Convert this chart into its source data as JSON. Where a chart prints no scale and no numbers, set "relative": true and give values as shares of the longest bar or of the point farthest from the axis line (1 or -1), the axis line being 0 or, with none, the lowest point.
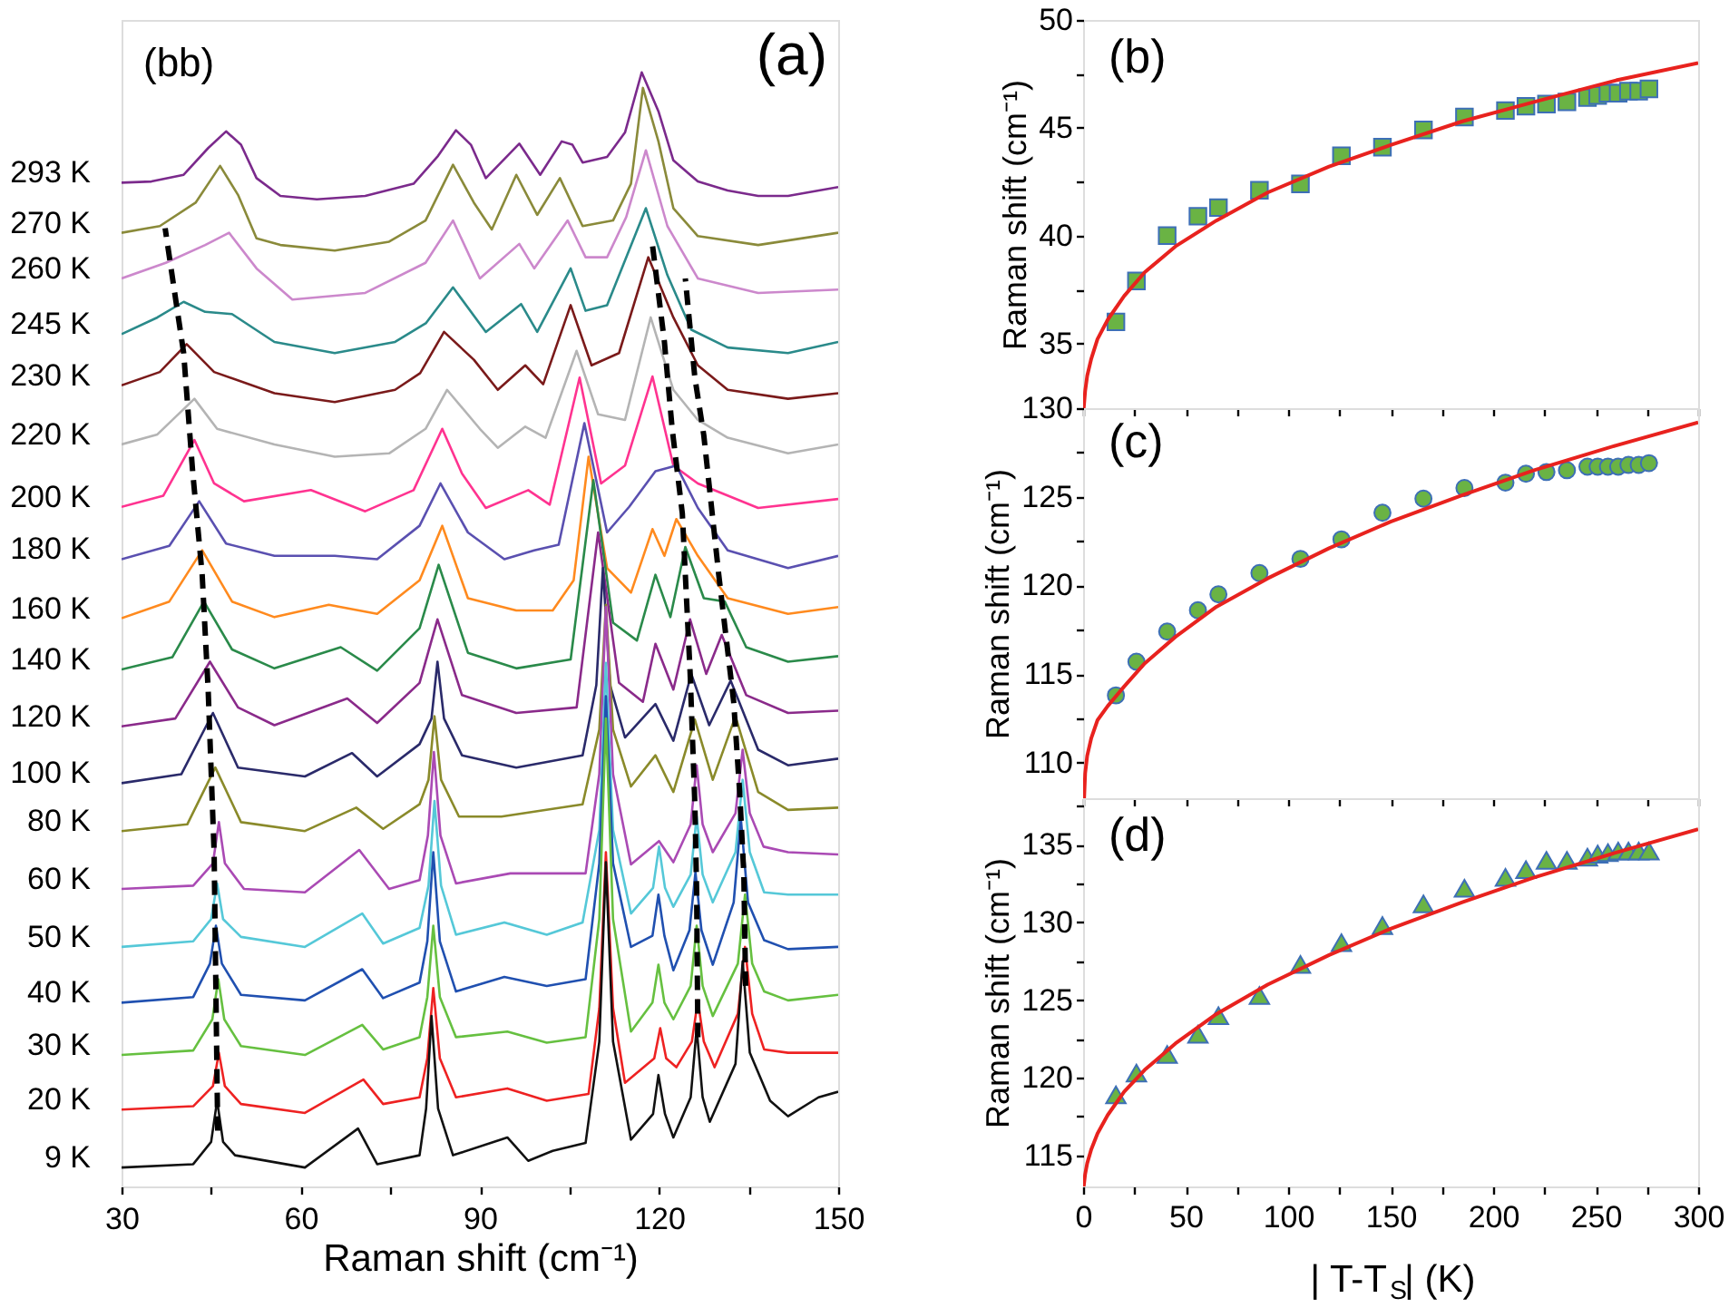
{
  "chart_data": [
    {
      "type": "line",
      "relative": true,
      "xlabel": "Raman shift (cm⁻¹)",
      "annotations": [
        "(bb)",
        "(a)"
      ],
      "xlim": [
        30,
        150
      ],
      "xticks": [
        30,
        {
          "value": 45,
          "label": null
        },
        60,
        {
          "value": 75,
          "label": null
        },
        90,
        {
          "value": 105,
          "label": null
        },
        120,
        {
          "value": 135,
          "label": null
        },
        150
      ],
      "series": [
        {
          "name": "293 K",
          "color": "#7b2a8c",
          "x": [
            30,
            35,
            40.4,
            44.5,
            47.5,
            50,
            52.6,
            56.6,
            62.7,
            70.8,
            78.9,
            83,
            86,
            88.5,
            91,
            96.6,
            100.1,
            103.7,
            105.5,
            107.2,
            111.3,
            114.3,
            117.1,
            119.9,
            122.4,
            126.5,
            131.5,
            136.6,
            141.6,
            150
          ],
          "values": [
            0.901,
            0.902,
            0.908,
            0.932,
            0.947,
            0.935,
            0.905,
            0.889,
            0.886,
            0.889,
            0.9,
            0.925,
            0.948,
            0.935,
            0.905,
            0.936,
            0.908,
            0.938,
            0.935,
            0.919,
            0.924,
            0.946,
            1.0,
            0.965,
            0.921,
            0.902,
            0.894,
            0.889,
            0.889,
            0.897
          ]
        },
        {
          "name": "270 K",
          "color": "#8a8a3a",
          "x": [
            30,
            36.4,
            42.4,
            46.5,
            49.5,
            52.6,
            56.6,
            65.7,
            74.8,
            80.9,
            85.5,
            89,
            92,
            96.1,
            99.6,
            103.4,
            107.2,
            112.3,
            115.3,
            117.3,
            119.9,
            122.4,
            126.5,
            136.6,
            150
          ],
          "values": [
            0.856,
            0.862,
            0.883,
            0.916,
            0.89,
            0.851,
            0.845,
            0.84,
            0.848,
            0.867,
            0.917,
            0.883,
            0.859,
            0.908,
            0.872,
            0.905,
            0.862,
            0.867,
            0.9,
            0.986,
            0.938,
            0.878,
            0.853,
            0.845,
            0.856
          ]
        },
        {
          "name": "260 K",
          "color": "#cc88cc",
          "x": [
            30,
            37.4,
            44,
            48,
            52.6,
            58.6,
            70.8,
            80.9,
            85.5,
            90,
            96.6,
            99.1,
            104.7,
            107.7,
            111.3,
            114.5,
            117.8,
            121.4,
            126.5,
            136.6,
            150
          ],
          "values": [
            0.815,
            0.829,
            0.845,
            0.856,
            0.824,
            0.796,
            0.802,
            0.829,
            0.867,
            0.815,
            0.846,
            0.824,
            0.867,
            0.834,
            0.834,
            0.87,
            0.93,
            0.862,
            0.815,
            0.802,
            0.805
          ]
        },
        {
          "name": "245 K",
          "color": "#2a8a8a",
          "x": [
            30,
            36,
            40.4,
            44,
            48.5,
            55.6,
            65.7,
            75.8,
            81,
            85.5,
            91,
            96.9,
            99.6,
            105.2,
            107.7,
            111.3,
            117.8,
            121.4,
            125.4,
            131.5,
            141.6,
            150
          ],
          "values": [
            0.765,
            0.78,
            0.794,
            0.785,
            0.783,
            0.758,
            0.748,
            0.758,
            0.775,
            0.807,
            0.767,
            0.792,
            0.767,
            0.824,
            0.786,
            0.791,
            0.878,
            0.818,
            0.769,
            0.753,
            0.748,
            0.758
          ]
        },
        {
          "name": "230 K",
          "color": "#7a1a1a",
          "x": [
            30,
            36.4,
            40.9,
            45.5,
            55.6,
            65.7,
            75.8,
            80,
            84,
            89,
            93,
            97.6,
            100.6,
            105.2,
            108.7,
            113.3,
            118.2,
            122.4,
            126.5,
            131.5,
            141.6,
            150
          ],
          "values": [
            0.719,
            0.731,
            0.756,
            0.731,
            0.712,
            0.704,
            0.715,
            0.73,
            0.767,
            0.742,
            0.715,
            0.737,
            0.72,
            0.791,
            0.737,
            0.748,
            0.834,
            0.78,
            0.737,
            0.715,
            0.707,
            0.712
          ]
        },
        {
          "name": "220 K",
          "color": "#b4b4b4",
          "x": [
            30,
            36,
            42.2,
            46,
            55.6,
            65.7,
            74.8,
            80.9,
            84.5,
            90,
            93,
            97.6,
            101,
            106.2,
            109.8,
            114.3,
            118.6,
            122.4,
            126.5,
            131.5,
            141.6,
            150
          ],
          "values": [
            0.666,
            0.675,
            0.707,
            0.68,
            0.666,
            0.655,
            0.658,
            0.68,
            0.715,
            0.68,
            0.663,
            0.682,
            0.672,
            0.75,
            0.693,
            0.688,
            0.78,
            0.715,
            0.688,
            0.672,
            0.658,
            0.666
          ]
        },
        {
          "name": "200 K",
          "color": "#ff3390",
          "x": [
            30,
            37,
            42.2,
            45.5,
            50.5,
            61.7,
            70.8,
            78.9,
            83.7,
            87,
            91,
            98.1,
            101.7,
            106.7,
            110.3,
            114.3,
            118.9,
            122.4,
            126.5,
            136.6,
            150
          ],
          "values": [
            0.61,
            0.62,
            0.67,
            0.631,
            0.615,
            0.625,
            0.606,
            0.625,
            0.68,
            0.64,
            0.609,
            0.625,
            0.612,
            0.726,
            0.631,
            0.647,
            0.727,
            0.647,
            0.631,
            0.609,
            0.617
          ]
        },
        {
          "name": "180 K",
          "color": "#5a50b0",
          "x": [
            30,
            38,
            43,
            47.5,
            55.6,
            65.7,
            72.8,
            79.9,
            83.4,
            88,
            94.1,
            99.1,
            103.2,
            107.5,
            111.3,
            115,
            119.4,
            122.9,
            126.5,
            131.5,
            141.6,
            150
          ],
          "values": [
            0.563,
            0.575,
            0.615,
            0.577,
            0.566,
            0.566,
            0.563,
            0.593,
            0.631,
            0.587,
            0.563,
            0.571,
            0.576,
            0.685,
            0.587,
            0.61,
            0.642,
            0.647,
            0.609,
            0.571,
            0.555,
            0.566
          ]
        },
        {
          "name": "160 K",
          "color": "#ff8a1e",
          "x": [
            30,
            38,
            43.5,
            48.5,
            55.6,
            64.7,
            72.8,
            79.9,
            83.7,
            88,
            96.1,
            102.2,
            105.7,
            108.2,
            111.3,
            115.3,
            118.9,
            120.9,
            122.9,
            126.5,
            131.5,
            141.6,
            150
          ],
          "values": [
            0.51,
            0.525,
            0.571,
            0.525,
            0.511,
            0.522,
            0.514,
            0.544,
            0.593,
            0.528,
            0.517,
            0.517,
            0.544,
            0.655,
            0.555,
            0.533,
            0.59,
            0.566,
            0.599,
            0.566,
            0.528,
            0.514,
            0.52
          ]
        },
        {
          "name": "140 K",
          "color": "#2a8a4a",
          "x": [
            30,
            38.5,
            43.8,
            48.5,
            55.6,
            66.7,
            72.8,
            79.9,
            83.1,
            88,
            96.1,
            105.2,
            109,
            112.3,
            116.3,
            119.4,
            121.9,
            124.4,
            127.5,
            131,
            134.6,
            141.6,
            150
          ],
          "values": [
            0.464,
            0.475,
            0.525,
            0.482,
            0.465,
            0.484,
            0.463,
            0.501,
            0.558,
            0.479,
            0.465,
            0.473,
            0.634,
            0.506,
            0.49,
            0.549,
            0.511,
            0.574,
            0.528,
            0.525,
            0.484,
            0.471,
            0.476
          ]
        },
        {
          "name": "120 K",
          "color": "#8a2a8a",
          "x": [
            30,
            39,
            44.8,
            49.5,
            55.6,
            67.8,
            72.8,
            79.9,
            82.9,
            87,
            96.1,
            106.2,
            109.8,
            113.3,
            117.3,
            119.4,
            122.4,
            125.2,
            127.9,
            130.5,
            134.6,
            141.6,
            150
          ],
          "values": [
            0.413,
            0.42,
            0.471,
            0.43,
            0.414,
            0.438,
            0.416,
            0.452,
            0.509,
            0.441,
            0.425,
            0.43,
            0.587,
            0.452,
            0.435,
            0.487,
            0.446,
            0.509,
            0.46,
            0.495,
            0.441,
            0.425,
            0.427
          ]
        },
        {
          "name": "100 K",
          "color": "#2a2a6a",
          "x": [
            30,
            40,
            45.3,
            49.5,
            60.7,
            68.6,
            72.8,
            79.9,
            81.9,
            82.9,
            84,
            87,
            96.1,
            107.2,
            109.5,
            110.6,
            111.8,
            114.3,
            119.4,
            122.4,
            125.4,
            128.4,
            132,
            136.6,
            141.6,
            150
          ],
          "values": [
            0.362,
            0.37,
            0.425,
            0.376,
            0.368,
            0.389,
            0.368,
            0.397,
            0.42,
            0.471,
            0.42,
            0.387,
            0.376,
            0.387,
            0.45,
            0.555,
            0.45,
            0.403,
            0.433,
            0.4,
            0.46,
            0.414,
            0.454,
            0.392,
            0.378,
            0.384
          ]
        },
        {
          "name": "80 K",
          "color": "#8a8a2a",
          "x": [
            30,
            41,
            45.7,
            50,
            60.7,
            69.3,
            73.8,
            79.9,
            81.4,
            82.4,
            83.5,
            86.5,
            93.6,
            107.2,
            110,
            111.1,
            112.3,
            115.3,
            119.4,
            122.4,
            126,
            129,
            132.8,
            136.6,
            141.6,
            150
          ],
          "values": [
            0.319,
            0.325,
            0.376,
            0.327,
            0.319,
            0.34,
            0.321,
            0.343,
            0.365,
            0.422,
            0.365,
            0.332,
            0.332,
            0.343,
            0.41,
            0.522,
            0.41,
            0.359,
            0.387,
            0.354,
            0.419,
            0.365,
            0.422,
            0.354,
            0.338,
            0.34
          ]
        },
        {
          "name": "60 K",
          "color": "#aa4ab4",
          "x": [
            30,
            42,
            45.3,
            46.3,
            47.3,
            50.5,
            60.7,
            69.8,
            74.8,
            79.9,
            81.3,
            82.3,
            83.4,
            86,
            95.1,
            107.7,
            110,
            111.1,
            112.3,
            115.3,
            120,
            122.4,
            125.3,
            126.3,
            127.3,
            129,
            132.8,
            134,
            135.2,
            137.5,
            141.6,
            150
          ],
          "values": [
            0.267,
            0.27,
            0.29,
            0.327,
            0.29,
            0.267,
            0.264,
            0.302,
            0.267,
            0.275,
            0.315,
            0.39,
            0.315,
            0.272,
            0.281,
            0.281,
            0.37,
            0.52,
            0.37,
            0.289,
            0.31,
            0.291,
            0.325,
            0.378,
            0.325,
            0.3,
            0.335,
            0.392,
            0.335,
            0.305,
            0.3,
            0.298
          ]
        },
        {
          "name": "50 K",
          "color": "#55c8d8",
          "x": [
            30,
            42,
            45,
            46,
            47,
            50,
            60.7,
            70.3,
            73.8,
            79.9,
            81.4,
            82.4,
            83.5,
            86,
            94.1,
            101.2,
            107.2,
            110,
            111.1,
            112.3,
            115.3,
            119,
            120,
            121,
            122.4,
            125.3,
            126.3,
            127.3,
            129,
            132.8,
            134,
            135.2,
            137.6,
            141.6,
            150
          ],
          "values": [
            0.215,
            0.22,
            0.24,
            0.272,
            0.24,
            0.224,
            0.215,
            0.245,
            0.218,
            0.232,
            0.27,
            0.346,
            0.27,
            0.226,
            0.237,
            0.226,
            0.237,
            0.32,
            0.47,
            0.32,
            0.245,
            0.268,
            0.305,
            0.268,
            0.251,
            0.28,
            0.332,
            0.28,
            0.255,
            0.3,
            0.365,
            0.3,
            0.264,
            0.262,
            0.262
          ]
        },
        {
          "name": "40 K",
          "color": "#2050b0",
          "x": [
            30,
            42,
            44.8,
            45.8,
            46.8,
            50,
            60.7,
            70.3,
            73.8,
            79.9,
            81.2,
            82.2,
            83.3,
            86,
            94.1,
            101.2,
            107.7,
            110,
            111.1,
            112.3,
            115.3,
            118.9,
            119.9,
            120.9,
            122.4,
            125.1,
            126.1,
            127.1,
            129,
            132.5,
            133.7,
            134.9,
            137.6,
            141.6,
            150
          ],
          "values": [
            0.165,
            0.17,
            0.2,
            0.234,
            0.2,
            0.172,
            0.167,
            0.195,
            0.169,
            0.183,
            0.22,
            0.3,
            0.22,
            0.175,
            0.188,
            0.18,
            0.186,
            0.29,
            0.44,
            0.29,
            0.215,
            0.225,
            0.262,
            0.225,
            0.194,
            0.23,
            0.282,
            0.23,
            0.199,
            0.255,
            0.33,
            0.255,
            0.221,
            0.213,
            0.215
          ]
        },
        {
          "name": "30 K",
          "color": "#66c040",
          "x": [
            30,
            42,
            45.2,
            46.2,
            47.2,
            50,
            60.7,
            70.3,
            73.8,
            79.9,
            81.2,
            82.2,
            83.3,
            86,
            94.6,
            101.2,
            107.7,
            110,
            111.1,
            112.3,
            115.3,
            118.9,
            119.9,
            120.9,
            122.4,
            125.3,
            126.3,
            127.3,
            129,
            133.2,
            134.4,
            135.6,
            137.6,
            141.6,
            150
          ],
          "values": [
            0.118,
            0.122,
            0.15,
            0.186,
            0.15,
            0.126,
            0.118,
            0.145,
            0.123,
            0.134,
            0.17,
            0.234,
            0.17,
            0.134,
            0.139,
            0.129,
            0.134,
            0.24,
            0.42,
            0.24,
            0.139,
            0.165,
            0.199,
            0.165,
            0.15,
            0.18,
            0.234,
            0.18,
            0.153,
            0.2,
            0.262,
            0.2,
            0.175,
            0.167,
            0.172
          ]
        },
        {
          "name": "20 K",
          "color": "#ee2222",
          "x": [
            30,
            42,
            45.3,
            46.3,
            47.3,
            50,
            60.7,
            70.5,
            73.8,
            79.9,
            81.2,
            82.2,
            83.3,
            86,
            94.6,
            101.2,
            108.2,
            110,
            111.1,
            112.3,
            114.3,
            119.2,
            120.2,
            121.2,
            122.9,
            125.5,
            126.5,
            127.5,
            129.3,
            133.2,
            134.4,
            135.6,
            137.6,
            141.6,
            150
          ],
          "values": [
            0.069,
            0.072,
            0.09,
            0.12,
            0.09,
            0.074,
            0.066,
            0.096,
            0.074,
            0.08,
            0.115,
            0.178,
            0.115,
            0.08,
            0.088,
            0.077,
            0.083,
            0.16,
            0.3,
            0.16,
            0.093,
            0.115,
            0.142,
            0.115,
            0.107,
            0.13,
            0.167,
            0.13,
            0.107,
            0.155,
            0.215,
            0.155,
            0.123,
            0.12,
            0.12
          ]
        },
        {
          "name": "9 K",
          "color": "#111111",
          "x": [
            30,
            42,
            45,
            46,
            47,
            49,
            60.7,
            69.6,
            72.8,
            79.9,
            81,
            81.9,
            83,
            85.5,
            94.6,
            98.1,
            102.2,
            107.7,
            110,
            111.1,
            112.3,
            115.3,
            119,
            119.9,
            121,
            122.4,
            125.3,
            126.3,
            127.3,
            128.5,
            132.8,
            134,
            135.2,
            138.6,
            141.6,
            146.7,
            150
          ],
          "values": [
            0.017,
            0.02,
            0.04,
            0.077,
            0.04,
            0.028,
            0.017,
            0.052,
            0.02,
            0.028,
            0.07,
            0.153,
            0.07,
            0.028,
            0.044,
            0.023,
            0.032,
            0.039,
            0.13,
            0.291,
            0.13,
            0.042,
            0.065,
            0.1,
            0.065,
            0.044,
            0.08,
            0.142,
            0.08,
            0.058,
            0.11,
            0.202,
            0.12,
            0.077,
            0.063,
            0.08,
            0.085
          ]
        },
        {
          "type": "line",
          "line_style": "dashed",
          "color": "#000000",
          "x": [
            46.1,
            45.5,
            44.5,
            43.5,
            41.9,
            40.4,
            38.9,
            37.3
          ],
          "values": [
            0.05,
            0.3,
            0.446,
            0.549,
            0.642,
            0.748,
            0.802,
            0.86
          ]
        },
        {
          "type": "line",
          "line_style": "dashed",
          "color": "#000000",
          "x": [
            134.5,
            134.2,
            133.5,
            132.5,
            130,
            127.5,
            126,
            124.4
          ],
          "values": [
            0.18,
            0.28,
            0.354,
            0.435,
            0.549,
            0.674,
            0.726,
            0.815
          ]
        },
        {
          "type": "line",
          "line_style": "dashed",
          "color": "#000000",
          "x": [
            126.5,
            126.3,
            126,
            125.2,
            123.9,
            122.2,
            120.9,
            118.9
          ],
          "values": [
            0.134,
            0.264,
            0.343,
            0.462,
            0.604,
            0.68,
            0.758,
            0.845
          ]
        }
      ]
    },
    {
      "type": "scatter",
      "ylabel": "Raman shift (cm⁻¹)",
      "annotations": [
        "(b)"
      ],
      "xlim": [
        0,
        300
      ],
      "xticks": [
        0,
        {
          "value": 25,
          "label": null
        },
        50,
        {
          "value": 75,
          "label": null
        },
        100,
        {
          "value": 125,
          "label": null
        },
        150,
        {
          "value": 175,
          "label": null
        },
        200,
        {
          "value": 225,
          "label": null
        },
        250,
        {
          "value": 275,
          "label": null
        },
        300
      ],
      "ylim": [
        32,
        50
      ],
      "yticks": [
        35,
        {
          "value": 37.5,
          "label": null
        },
        40,
        {
          "value": 42.5,
          "label": null
        },
        45,
        {
          "value": 47.5,
          "label": null
        },
        50
      ],
      "tick_labels": "y",
      "series": [
        {
          "type": "scatter",
          "marker": "square",
          "color": "#6ab344",
          "x": [
            16,
            26,
            41,
            56,
            66,
            86,
            106,
            126,
            146,
            166,
            186,
            206,
            216,
            226,
            236,
            246,
            251,
            256,
            261,
            266,
            271,
            276
          ],
          "values": [
            36.0,
            37.9,
            40.0,
            40.9,
            41.3,
            42.1,
            42.4,
            43.7,
            44.1,
            44.9,
            45.5,
            45.8,
            46.0,
            46.1,
            46.2,
            46.4,
            46.5,
            46.6,
            46.6,
            46.7,
            46.7,
            46.8
          ]
        },
        {
          "type": "line",
          "color": "#e8221e",
          "x": [
            0.3,
            1,
            2,
            4,
            7,
            12,
            20,
            30,
            45,
            65,
            90,
            120,
            150,
            185,
            220,
            260,
            300
          ],
          "values": [
            32.0,
            32.8,
            33.5,
            34.3,
            35.2,
            36.1,
            37.2,
            38.3,
            39.5,
            40.7,
            42.0,
            43.2,
            44.2,
            45.3,
            46.2,
            47.2,
            48.0
          ]
        }
      ]
    },
    {
      "type": "scatter",
      "ylabel": "Raman shift (cm⁻¹)",
      "annotations": [
        "(c)"
      ],
      "xlim": [
        0,
        300
      ],
      "xticks": [
        0,
        {
          "value": 25,
          "label": null
        },
        50,
        {
          "value": 75,
          "label": null
        },
        100,
        {
          "value": 125,
          "label": null
        },
        150,
        {
          "value": 175,
          "label": null
        },
        200,
        {
          "value": 225,
          "label": null
        },
        250,
        {
          "value": 275,
          "label": null
        },
        300
      ],
      "ylim": [
        108,
        130
      ],
      "yticks": [
        110,
        {
          "value": 112.5,
          "label": null
        },
        115,
        {
          "value": 117.5,
          "label": null
        },
        120,
        {
          "value": 122.5,
          "label": null
        },
        125,
        {
          "value": 127.5,
          "label": null
        },
        130
      ],
      "tick_labels": "y",
      "series": [
        {
          "type": "scatter",
          "marker": "circle",
          "color": "#6ab344",
          "x": [
            16,
            26,
            41,
            56,
            66,
            86,
            106,
            126,
            146,
            166,
            186,
            206,
            216,
            226,
            236,
            246,
            251,
            256,
            261,
            266,
            271,
            276
          ],
          "values": [
            113.8,
            115.7,
            117.4,
            118.6,
            119.5,
            120.7,
            121.5,
            122.6,
            124.1,
            124.9,
            125.5,
            125.8,
            126.3,
            126.4,
            126.5,
            126.7,
            126.7,
            126.7,
            126.7,
            126.8,
            126.8,
            126.9
          ]
        },
        {
          "type": "line",
          "color": "#e8221e",
          "x": [
            0.5,
            1,
            2,
            4,
            7,
            12,
            20,
            30,
            45,
            65,
            90,
            120,
            150,
            185,
            220,
            260,
            300
          ],
          "values": [
            108.0,
            109.4,
            110.4,
            111.4,
            112.4,
            113.2,
            114.3,
            115.6,
            117.1,
            118.8,
            120.4,
            122.1,
            123.6,
            125.1,
            126.5,
            127.9,
            129.2
          ]
        }
      ]
    },
    {
      "type": "scatter",
      "ylabel": "Raman shift (cm⁻¹)",
      "xlabel": "| T-T$_{S}$| (K)",
      "annotations": [
        "(d)"
      ],
      "xlim": [
        0,
        300
      ],
      "xticks": [
        0,
        {
          "value": 25,
          "label": null
        },
        50,
        {
          "value": 75,
          "label": null
        },
        100,
        {
          "value": 125,
          "label": null
        },
        150,
        {
          "value": 175,
          "label": null
        },
        200,
        {
          "value": 225,
          "label": null
        },
        250,
        {
          "value": 275,
          "label": null
        },
        300
      ],
      "ylim": [
        113,
        138
      ],
      "yticks": [
        115,
        {
          "value": 117.5,
          "label": null
        },
        120,
        {
          "value": 122.5,
          "label": null
        },
        125,
        {
          "value": 127.5,
          "label": null
        },
        130,
        {
          "value": 132.5,
          "label": null
        },
        135,
        {
          "value": 137.5,
          "label": null
        }
      ],
      "series": [
        {
          "type": "scatter",
          "marker": "triangle",
          "color": "#6ab344",
          "x": [
            16,
            26,
            41,
            56,
            66,
            86,
            106,
            126,
            146,
            166,
            186,
            206,
            216,
            226,
            236,
            246,
            251,
            256,
            261,
            266,
            271,
            276
          ],
          "values": [
            118.9,
            120.3,
            121.5,
            122.8,
            124.0,
            125.3,
            127.3,
            128.7,
            129.8,
            131.2,
            132.2,
            132.9,
            133.4,
            134.0,
            134.0,
            134.2,
            134.4,
            134.5,
            134.6,
            134.6,
            134.6,
            134.6
          ]
        },
        {
          "type": "line",
          "color": "#e8221e",
          "x": [
            0.3,
            1,
            2,
            4,
            7,
            12,
            20,
            30,
            45,
            65,
            90,
            120,
            150,
            185,
            220,
            260,
            300
          ],
          "values": [
            113.0,
            113.8,
            114.5,
            115.4,
            116.4,
            117.6,
            119.1,
            120.5,
            122.2,
            124.1,
            126.0,
            127.9,
            129.6,
            131.3,
            132.9,
            134.5,
            136.0
          ]
        }
      ]
    }
  ]
}
